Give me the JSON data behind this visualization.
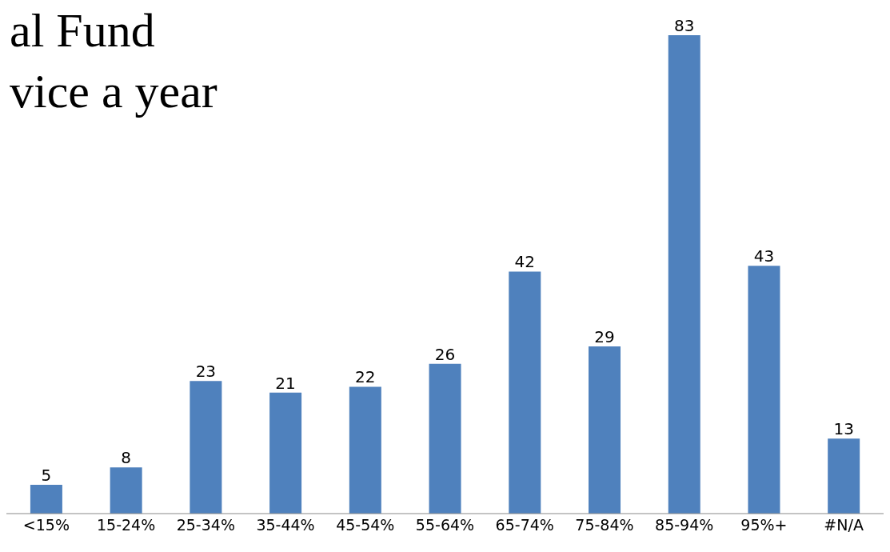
{
  "chart_data": {
    "type": "bar",
    "title": "al Fund",
    "subtitle": "vice a year",
    "categories": [
      "<15%",
      "15-24%",
      "25-34%",
      "35-44%",
      "45-54%",
      "55-64%",
      "65-74%",
      "75-84%",
      "85-94%",
      "95%+",
      "#N/A"
    ],
    "values": [
      5,
      8,
      23,
      21,
      22,
      26,
      42,
      29,
      83,
      43,
      13
    ],
    "color": "#4f81bd",
    "data_labels": true
  }
}
